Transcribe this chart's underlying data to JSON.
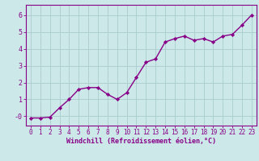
{
  "x": [
    0,
    1,
    2,
    3,
    4,
    5,
    6,
    7,
    8,
    9,
    10,
    11,
    12,
    13,
    14,
    15,
    16,
    17,
    18,
    19,
    20,
    21,
    22,
    23
  ],
  "y": [
    -0.1,
    -0.1,
    -0.05,
    0.5,
    1.0,
    1.6,
    1.7,
    1.7,
    1.3,
    1.0,
    1.4,
    2.3,
    3.2,
    3.4,
    4.4,
    4.6,
    4.75,
    4.5,
    4.6,
    4.4,
    4.75,
    4.85,
    5.4,
    6.0
  ],
  "line_color": "#880088",
  "marker": "D",
  "marker_size": 2.2,
  "bg_color": "#cce8e8",
  "grid_color": "#aacccc",
  "axis_color": "#880088",
  "tick_color": "#880088",
  "xlabel": "Windchill (Refroidissement éolien,°C)",
  "xlabel_fontsize": 6,
  "ytick_labels": [
    "-0",
    "1",
    "2",
    "3",
    "4",
    "5",
    "6"
  ],
  "ytick_vals": [
    0,
    1,
    2,
    3,
    4,
    5,
    6
  ],
  "ylim": [
    -0.55,
    6.6
  ],
  "xlim": [
    -0.5,
    23.5
  ],
  "xticks": [
    0,
    1,
    2,
    3,
    4,
    5,
    6,
    7,
    8,
    9,
    10,
    11,
    12,
    13,
    14,
    15,
    16,
    17,
    18,
    19,
    20,
    21,
    22,
    23
  ],
  "tick_fontsize": 5.5,
  "linewidth": 1.0
}
